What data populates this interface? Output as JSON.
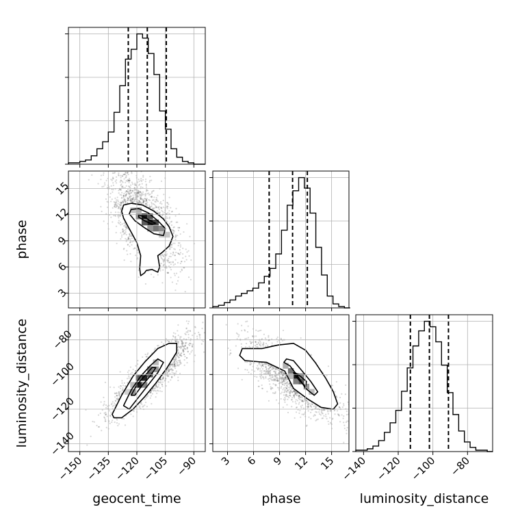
{
  "chart_data": {
    "type": "corner",
    "parameters": [
      {
        "key": "geocent_time",
        "label": "geocent_time",
        "range": [
          -156,
          -84
        ],
        "ticks": [
          -150,
          -135,
          -120,
          -105,
          -90
        ],
        "tick_labels": [
          "−150",
          "−135",
          "−120",
          "−105",
          "−90"
        ],
        "quantiles": [
          -124.5,
          -114.5,
          -104.5
        ],
        "hist": {
          "edges_start": -156,
          "bin_width": 3,
          "counts": [
            1,
            1,
            2,
            3,
            6,
            11,
            16,
            23,
            37,
            56,
            75,
            82,
            93,
            90,
            79,
            64,
            38,
            25,
            11,
            5,
            2,
            1,
            0,
            0
          ]
        }
      },
      {
        "key": "phase",
        "label": "phase",
        "range": [
          1.3,
          17.0
        ],
        "ticks": [
          3,
          6,
          9,
          12,
          15
        ],
        "tick_labels": [
          "3",
          "6",
          "9",
          "12",
          "15"
        ],
        "quantiles": [
          7.8,
          10.5,
          12.2
        ],
        "hist": {
          "edges_start": 1.3,
          "bin_width": 0.66,
          "counts": [
            1,
            2,
            4,
            6,
            9,
            11,
            13,
            15,
            19,
            24,
            30,
            41,
            59,
            78,
            89,
            99,
            91,
            72,
            46,
            25,
            9,
            3,
            1,
            0
          ]
        }
      },
      {
        "key": "luminosity_distance",
        "label": "luminosity_distance",
        "range": [
          -144.5,
          -65.5
        ],
        "ticks": [
          -140,
          -120,
          -100,
          -80
        ],
        "tick_labels": [
          "−140",
          "−120",
          "−100",
          "−80"
        ],
        "quantiles": [
          -113,
          -102,
          -91
        ],
        "hist": {
          "edges_start": -144.5,
          "bin_width": 3.3,
          "counts": [
            1,
            1,
            2,
            4,
            8,
            14,
            21,
            30,
            44,
            61,
            77,
            88,
            95,
            91,
            80,
            63,
            43,
            27,
            15,
            7,
            3,
            1,
            1,
            0
          ]
        }
      }
    ],
    "pairs": [
      {
        "x": "geocent_time",
        "y": "phase",
        "center": [
          -116,
          11.2
        ],
        "sigma": [
          9,
          2.6
        ],
        "rho": -0.6,
        "n_points": 1800,
        "blocks": [
          {
            "x": -116,
            "y": 11.8,
            "level": 1.0
          },
          {
            "x": -113,
            "y": 11.1,
            "level": 0.95
          },
          {
            "x": -110,
            "y": 11.1,
            "level": 0.8
          },
          {
            "x": -113,
            "y": 11.8,
            "level": 0.75
          },
          {
            "x": -116,
            "y": 11.1,
            "level": 0.72
          },
          {
            "x": -119,
            "y": 11.8,
            "level": 0.55
          },
          {
            "x": -110,
            "y": 10.4,
            "level": 0.6
          },
          {
            "x": -107,
            "y": 10.4,
            "level": 0.5
          },
          {
            "x": -113,
            "y": 10.4,
            "level": 0.45
          },
          {
            "x": -119,
            "y": 12.5,
            "level": 0.35
          },
          {
            "x": -122,
            "y": 12.5,
            "level": 0.25
          },
          {
            "x": -104,
            "y": 9.7,
            "level": 0.25
          },
          {
            "x": -107,
            "y": 9.7,
            "level": 0.22
          }
        ],
        "contours": [
          [
            [
              -119,
              11.7
            ],
            [
              -116,
              11.3
            ],
            [
              -112,
              10.9
            ],
            [
              -110,
              11.0
            ],
            [
              -112,
              11.2
            ],
            [
              -116,
              11.7
            ],
            [
              -119,
              12.0
            ]
          ],
          [
            [
              -123,
              12.6
            ],
            [
              -119,
              12.7
            ],
            [
              -114,
              12.2
            ],
            [
              -109,
              11.3
            ],
            [
              -105,
              10.4
            ],
            [
              -106,
              9.6
            ],
            [
              -111,
              9.8
            ],
            [
              -116,
              10.5
            ],
            [
              -121,
              11.3
            ],
            [
              -124,
              12.1
            ]
          ],
          [
            [
              -127,
              13.1
            ],
            [
              -123,
              13.3
            ],
            [
              -117,
              13.1
            ],
            [
              -111,
              12.4
            ],
            [
              -106,
              11.5
            ],
            [
              -103,
              10.6
            ],
            [
              -101,
              9.5
            ],
            [
              -103,
              8.4
            ],
            [
              -107,
              7.6
            ],
            [
              -109,
              7.3
            ],
            [
              -108,
              6.0
            ],
            [
              -109,
              5.4
            ],
            [
              -112,
              5.7
            ],
            [
              -115,
              5.6
            ],
            [
              -116,
              5.3
            ],
            [
              -118,
              5.0
            ],
            [
              -118.5,
              5.8
            ],
            [
              -118,
              7.3
            ],
            [
              -120,
              8.8
            ],
            [
              -123,
              10.0
            ],
            [
              -125,
              10.8
            ],
            [
              -127,
              11.6
            ],
            [
              -128,
              12.4
            ]
          ]
        ]
      },
      {
        "x": "geocent_time",
        "y": "luminosity_distance",
        "center": [
          -113,
          -101
        ],
        "sigma": [
          10,
          11
        ],
        "rho": 0.85,
        "n_points": 1800,
        "blocks": [
          {
            "x": -119,
            "y": -106,
            "level": 1.0
          },
          {
            "x": -116,
            "y": -102,
            "level": 0.95
          },
          {
            "x": -113,
            "y": -100,
            "level": 0.7
          },
          {
            "x": -119,
            "y": -102,
            "level": 0.7
          },
          {
            "x": -113,
            "y": -97,
            "level": 0.55
          },
          {
            "x": -116,
            "y": -106,
            "level": 0.55
          },
          {
            "x": -110,
            "y": -97,
            "level": 0.45
          },
          {
            "x": -122,
            "y": -110,
            "level": 0.45
          },
          {
            "x": -110,
            "y": -93,
            "level": 0.3
          },
          {
            "x": -122,
            "y": -106,
            "level": 0.3
          },
          {
            "x": -125,
            "y": -110,
            "level": 0.2
          }
        ],
        "contours": [
          [
            [
              -123,
              -112
            ],
            [
              -120,
              -106
            ],
            [
              -116,
              -101
            ],
            [
              -112,
              -96
            ],
            [
              -110,
              -96
            ],
            [
              -113,
              -101
            ],
            [
              -117,
              -106
            ],
            [
              -121,
              -112
            ]
          ],
          [
            [
              -127,
              -118
            ],
            [
              -123,
              -109
            ],
            [
              -118,
              -101
            ],
            [
              -113,
              -95
            ],
            [
              -109,
              -91
            ],
            [
              -106,
              -93
            ],
            [
              -109,
              -99
            ],
            [
              -114,
              -106
            ],
            [
              -119,
              -113
            ],
            [
              -124,
              -120
            ]
          ],
          [
            [
              -133,
              -123
            ],
            [
              -128,
              -112
            ],
            [
              -122,
              -101
            ],
            [
              -116,
              -93
            ],
            [
              -109,
              -85
            ],
            [
              -103,
              -82
            ],
            [
              -99,
              -82
            ],
            [
              -99,
              -87
            ],
            [
              -104,
              -96
            ],
            [
              -110,
              -105
            ],
            [
              -116,
              -113
            ],
            [
              -122,
              -120
            ],
            [
              -128,
              -125
            ],
            [
              -132,
              -125
            ]
          ]
        ]
      },
      {
        "x": "phase",
        "y": "luminosity_distance",
        "center": [
          10.5,
          -102
        ],
        "sigma": [
          2.6,
          11
        ],
        "rho": -0.75,
        "n_points": 1800,
        "blocks": [
          {
            "x": 10.9,
            "y": -101,
            "level": 1.0
          },
          {
            "x": 11.5,
            "y": -104,
            "level": 0.75
          },
          {
            "x": 10.3,
            "y": -98,
            "level": 0.6
          },
          {
            "x": 11.5,
            "y": -101,
            "level": 0.55
          },
          {
            "x": 10.9,
            "y": -104,
            "level": 0.55
          },
          {
            "x": 12.1,
            "y": -107,
            "level": 0.45
          },
          {
            "x": 9.7,
            "y": -95,
            "level": 0.35
          },
          {
            "x": 12.7,
            "y": -110,
            "level": 0.3
          },
          {
            "x": 10.3,
            "y": -101,
            "level": 0.3
          }
        ],
        "contours": [
          [
            [
              10.6,
              -99
            ],
            [
              11.2,
              -103
            ],
            [
              12.0,
              -107
            ],
            [
              12.1,
              -104
            ],
            [
              11.4,
              -101
            ],
            [
              10.8,
              -99
            ]
          ],
          [
            [
              10.2,
              -95
            ],
            [
              11.1,
              -101
            ],
            [
              12.0,
              -108
            ],
            [
              13.0,
              -112
            ],
            [
              13.4,
              -110
            ],
            [
              12.6,
              -104
            ],
            [
              11.6,
              -98
            ],
            [
              10.6,
              -92
            ],
            [
              9.8,
              -91
            ],
            [
              9.5,
              -93
            ]
          ],
          [
            [
              4.7,
              -85
            ],
            [
              7.0,
              -85
            ],
            [
              8.8,
              -83
            ],
            [
              10.6,
              -82
            ],
            [
              12.0,
              -86
            ],
            [
              13.1,
              -93
            ],
            [
              14.3,
              -102
            ],
            [
              15.2,
              -110
            ],
            [
              15.7,
              -117
            ],
            [
              15.2,
              -120
            ],
            [
              13.8,
              -119
            ],
            [
              12.2,
              -114
            ],
            [
              10.6,
              -108
            ],
            [
              9.6,
              -98
            ],
            [
              7.5,
              -93
            ],
            [
              5.0,
              -92
            ],
            [
              4.4,
              -89
            ]
          ]
        ]
      }
    ],
    "grid": true
  }
}
